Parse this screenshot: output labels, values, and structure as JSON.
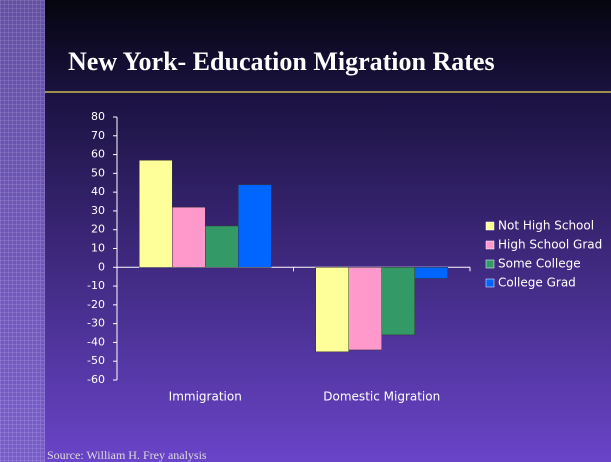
{
  "chart_data": {
    "type": "bar",
    "title": "New York-   Education Migration Rates",
    "categories": [
      "Immigration",
      "Domestic Migration"
    ],
    "series": [
      {
        "name": "Not High School",
        "color": "#ffff99",
        "values": [
          57,
          -45
        ]
      },
      {
        "name": "High School Grad",
        "color": "#ff99cc",
        "values": [
          32,
          -44
        ]
      },
      {
        "name": "Some College",
        "color": "#339966",
        "values": [
          22,
          -36
        ]
      },
      {
        "name": "College Grad",
        "color": "#0066ff",
        "values": [
          44,
          -6
        ]
      }
    ],
    "ylim": [
      -60,
      80
    ],
    "yticks": [
      80,
      70,
      60,
      50,
      40,
      30,
      20,
      10,
      0,
      -10,
      -20,
      -30,
      -40,
      -50,
      -60
    ],
    "legend": "right",
    "source": "Source: William H. Frey analysis"
  }
}
